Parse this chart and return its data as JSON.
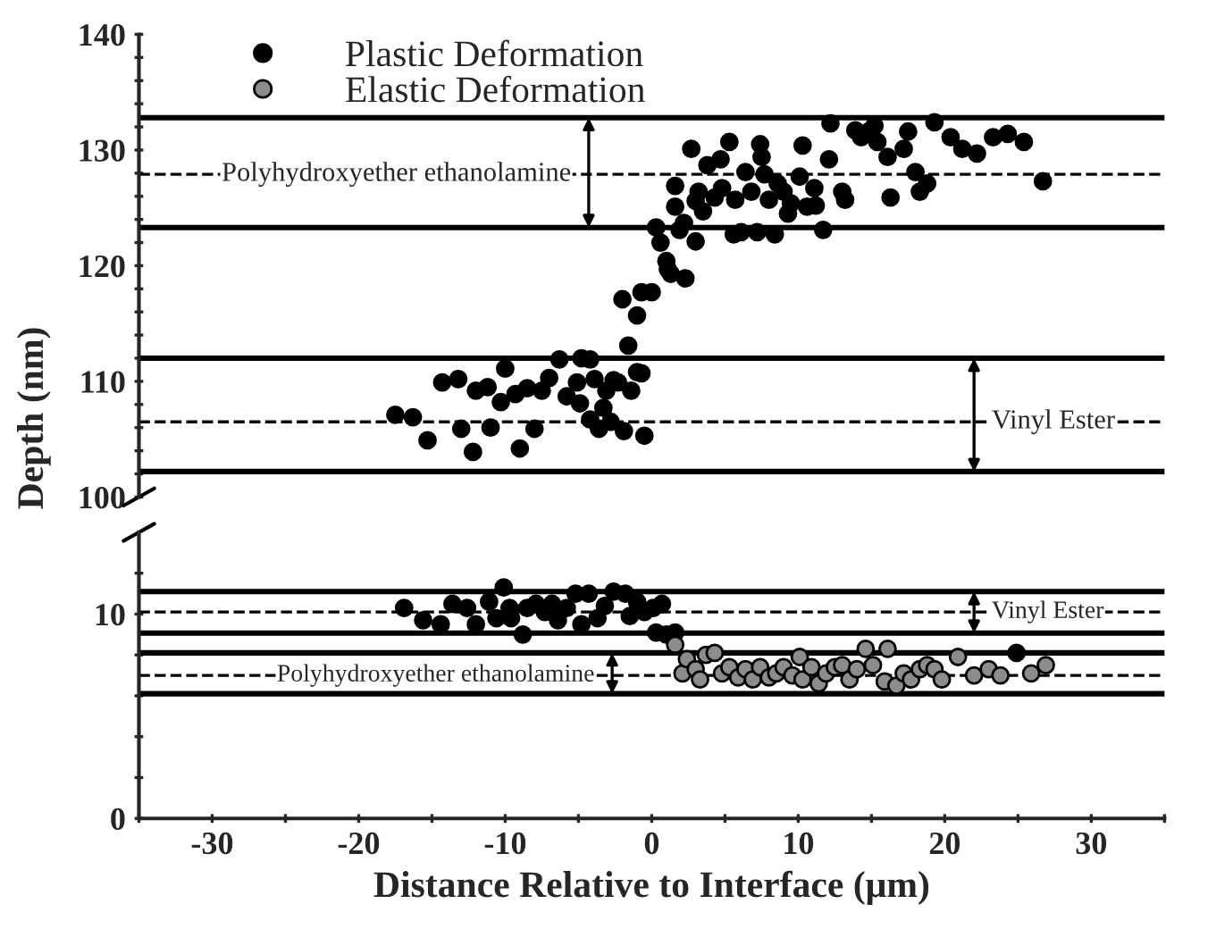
{
  "chart_data": [
    {
      "type": "scatter",
      "ylabel": "Depth (nm)",
      "xlim": [
        -35,
        35
      ],
      "ylim": [
        100,
        140
      ],
      "yticks": [
        100,
        {
          "value": 102,
          "label": null
        },
        {
          "value": 104,
          "label": null
        },
        {
          "value": 106,
          "label": null
        },
        {
          "value": 108,
          "label": null
        },
        110,
        {
          "value": 112,
          "label": null
        },
        {
          "value": 114,
          "label": null
        },
        {
          "value": 116,
          "label": null
        },
        {
          "value": 118,
          "label": null
        },
        120,
        {
          "value": 122,
          "label": null
        },
        {
          "value": 124,
          "label": null
        },
        {
          "value": 126,
          "label": null
        },
        {
          "value": 128,
          "label": null
        },
        130,
        {
          "value": 132,
          "label": null
        },
        {
          "value": 134,
          "label": null
        },
        {
          "value": 136,
          "label": null
        },
        {
          "value": 138,
          "label": null
        },
        140
      ],
      "tick_labels": "y",
      "legend": "top left",
      "marker": "circle",
      "series": [
        {
          "name": "Plastic Deformation",
          "color": "#000000",
          "x": [
            -17.5,
            -16.3,
            -15.3,
            -14.3,
            -13.2,
            -13.0,
            -12.2,
            -12.0,
            -11.2,
            -11.0,
            -10.3,
            -10.0,
            -9.3,
            -9.0,
            -8.5,
            -8.0,
            -7.5,
            -7.0,
            -6.3,
            -5.8,
            -5.1,
            -4.9,
            -4.8,
            -4.2,
            -4.2,
            -3.9,
            -3.6,
            -3.3,
            -3.1,
            -2.8,
            -2.6,
            -2.3,
            -1.9,
            -1.6,
            -1.4,
            -1.0,
            -0.7,
            -0.5,
            -2.0,
            -1.0,
            -0.7,
            0.0,
            0.3,
            0.6,
            1.0,
            1.1,
            1.3,
            2.3,
            1.6,
            1.9,
            1.6,
            2.2,
            2.7,
            3.0,
            3.2,
            3.0,
            3.5,
            3.8,
            4.3,
            4.7,
            4.8,
            5.3,
            5.6,
            5.7,
            6.1,
            6.4,
            6.8,
            7.2,
            7.4,
            7.5,
            7.7,
            8.0,
            8.4,
            8.6,
            9.0,
            9.3,
            9.5,
            10.3,
            10.1,
            10.6,
            11.1,
            11.2,
            11.7,
            12.1,
            12.2,
            13.0,
            13.2,
            13.9,
            14.3,
            14.8,
            15.2,
            15.4,
            16.1,
            16.3,
            17.2,
            17.5,
            18.0,
            18.3,
            18.8,
            19.3,
            20.4,
            21.2,
            22.2,
            23.3,
            24.3,
            25.4,
            26.7
          ],
          "values": [
            107.1,
            106.9,
            104.9,
            109.9,
            110.2,
            105.9,
            103.9,
            109.2,
            109.5,
            106.0,
            108.2,
            111.1,
            108.9,
            104.2,
            109.4,
            105.9,
            109.2,
            110.3,
            111.9,
            108.7,
            109.9,
            108.1,
            112.0,
            111.9,
            106.7,
            110.2,
            105.9,
            107.7,
            109.2,
            106.5,
            110.1,
            109.9,
            105.7,
            113.1,
            109.2,
            110.8,
            110.7,
            105.3,
            117.1,
            115.7,
            117.7,
            117.7,
            123.3,
            122.0,
            120.4,
            119.7,
            119.3,
            118.9,
            125.1,
            123.1,
            126.9,
            123.7,
            130.1,
            125.6,
            126.4,
            122.1,
            124.7,
            128.7,
            125.9,
            129.2,
            126.7,
            130.7,
            122.7,
            125.7,
            122.9,
            128.1,
            126.4,
            122.9,
            130.5,
            129.4,
            127.9,
            125.7,
            122.7,
            127.1,
            126.4,
            124.5,
            125.4,
            130.4,
            127.7,
            125.1,
            126.7,
            125.2,
            123.1,
            129.2,
            132.3,
            126.4,
            125.7,
            131.7,
            131.1,
            131.6,
            132.1,
            130.7,
            129.4,
            125.9,
            130.1,
            131.6,
            128.1,
            126.4,
            127.1,
            132.4,
            131.1,
            130.1,
            129.7,
            131.1,
            131.4,
            130.7,
            127.3
          ]
        },
        {
          "name": "Elastic Deformation",
          "color": "#8c8c8c"
        }
      ],
      "ref_lines": [
        {
          "axis": "y",
          "value": 127.9,
          "line_style": "dashed",
          "color": "#000000"
        },
        {
          "axis": "y",
          "value": 106.5,
          "line_style": "dashed",
          "color": "#000000"
        },
        {
          "axis": "y",
          "value": 132.8,
          "line_style": "solid",
          "color": "#000000"
        },
        {
          "axis": "y",
          "value": 123.3,
          "line_style": "solid",
          "color": "#000000"
        },
        {
          "axis": "y",
          "value": 112.0,
          "line_style": "solid",
          "color": "#000000"
        },
        {
          "axis": "y",
          "value": 102.2,
          "line_style": "solid",
          "color": "#000000"
        }
      ],
      "annotations": [
        {
          "text": "Polyhydroxyether ethanolamine",
          "x": -4.3,
          "y": 127.9
        },
        {
          "text": "Vinyl Ester",
          "x": 22,
          "y": 106.5
        }
      ]
    },
    {
      "type": "scatter",
      "xlabel": "Distance Relative to Interface (μm)",
      "xlim": [
        -35,
        35
      ],
      "ylim": [
        0,
        14
      ],
      "xticks": [
        {
          "value": -35,
          "label": null
        },
        -30,
        {
          "value": -25,
          "label": null
        },
        -20,
        {
          "value": -15,
          "label": null
        },
        -10,
        {
          "value": -5,
          "label": null
        },
        0,
        {
          "value": 5,
          "label": null
        },
        10,
        {
          "value": 15,
          "label": null
        },
        20,
        {
          "value": 25,
          "label": null
        },
        30,
        {
          "value": 35,
          "label": null
        }
      ],
      "yticks": [
        0,
        {
          "value": 2,
          "label": null
        },
        {
          "value": 4,
          "label": null
        },
        {
          "value": 6,
          "label": null
        },
        {
          "value": 8,
          "label": null
        },
        10,
        {
          "value": 12,
          "label": null
        }
      ],
      "marker": "circle",
      "series": [
        {
          "color": "#000000",
          "x": [
            -16.9,
            -15.6,
            -14.4,
            -13.6,
            -12.6,
            -12.0,
            -11.1,
            -10.6,
            -10.1,
            -9.7,
            -9.6,
            -8.8,
            -8.5,
            -7.9,
            -7.3,
            -6.8,
            -6.4,
            -5.8,
            -5.2,
            -4.8,
            -4.3,
            -3.7,
            -3.2,
            -2.6,
            -1.8,
            -1.5,
            -1.0,
            -0.5,
            0.1,
            0.3,
            0.7,
            1.0,
            1.6,
            24.9
          ],
          "values": [
            10.3,
            9.7,
            9.5,
            10.5,
            10.3,
            9.5,
            10.6,
            9.8,
            11.3,
            10.3,
            9.8,
            9.0,
            10.3,
            10.5,
            10.1,
            10.5,
            9.7,
            10.3,
            11.0,
            9.5,
            11.0,
            9.8,
            10.4,
            11.1,
            11.0,
            9.9,
            10.6,
            10.1,
            10.3,
            9.1,
            10.5,
            9.0,
            9.1,
            8.1
          ]
        },
        {
          "color": "#8c8c8c",
          "x": [
            1.6,
            2.1,
            2.4,
            3.0,
            3.3,
            3.7,
            4.3,
            4.8,
            5.3,
            5.9,
            6.4,
            6.9,
            7.4,
            8.0,
            8.5,
            9.0,
            9.6,
            10.1,
            10.3,
            10.9,
            11.4,
            11.9,
            12.5,
            13.0,
            13.5,
            14.0,
            14.6,
            15.1,
            15.9,
            16.1,
            16.7,
            17.2,
            17.7,
            18.3,
            18.8,
            19.3,
            19.8,
            20.9,
            22.0,
            23.0,
            23.8,
            25.9,
            26.9
          ],
          "values": [
            8.5,
            7.1,
            7.8,
            7.3,
            6.8,
            8.0,
            8.1,
            7.1,
            7.4,
            6.9,
            7.3,
            6.8,
            7.4,
            6.9,
            7.1,
            7.4,
            7.0,
            7.9,
            6.8,
            7.4,
            6.6,
            7.1,
            7.4,
            7.5,
            6.8,
            7.3,
            8.3,
            7.5,
            6.7,
            8.3,
            6.5,
            7.1,
            6.8,
            7.3,
            7.5,
            7.3,
            6.8,
            7.9,
            7.0,
            7.3,
            7.0,
            7.1,
            7.5
          ]
        }
      ],
      "ref_lines": [
        {
          "axis": "y",
          "value": 10.1,
          "line_style": "dashed",
          "color": "#000000"
        },
        {
          "axis": "y",
          "value": 7.0,
          "line_style": "dashed",
          "color": "#000000"
        },
        {
          "axis": "y",
          "value": 11.1,
          "line_style": "solid",
          "color": "#000000"
        },
        {
          "axis": "y",
          "value": 9.07,
          "line_style": "solid",
          "color": "#000000"
        },
        {
          "axis": "y",
          "value": 8.1,
          "line_style": "solid",
          "color": "#000000"
        },
        {
          "axis": "y",
          "value": 6.1,
          "line_style": "solid",
          "color": "#000000"
        }
      ],
      "annotations": [
        {
          "text": "Vinyl Ester",
          "x": 22,
          "y": 10.1
        },
        {
          "text": "Polyhydroxyether ethanolamine",
          "x": -2.7,
          "y": 7.0
        }
      ]
    }
  ]
}
